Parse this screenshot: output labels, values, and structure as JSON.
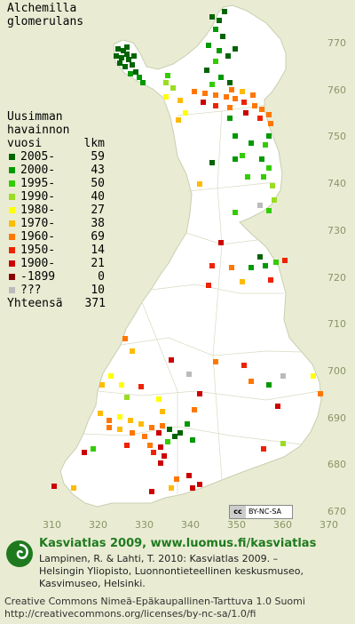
{
  "title": {
    "line1": "Alchemilla",
    "line2": "glomerulans"
  },
  "legend": {
    "heading": [
      "Uusimman",
      "havainnon"
    ],
    "col_year": "vuosi",
    "col_count": "lkm",
    "items": [
      {
        "label": "2005-",
        "count": "59",
        "color": "#006400"
      },
      {
        "label": "2000-",
        "count": "43",
        "color": "#009900"
      },
      {
        "label": "1995-",
        "count": "50",
        "color": "#33cc00"
      },
      {
        "label": "1990-",
        "count": "40",
        "color": "#99dd22"
      },
      {
        "label": "1980-",
        "count": "27",
        "color": "#ffff00"
      },
      {
        "label": "1970-",
        "count": "38",
        "color": "#ffbb00"
      },
      {
        "label": "1960-",
        "count": "69",
        "color": "#ff7700"
      },
      {
        "label": "1950-",
        "count": "14",
        "color": "#ee2200"
      },
      {
        "label": "1900-",
        "count": "21",
        "color": "#cc0000"
      },
      {
        "label": "-1899",
        "count": "0",
        "color": "#880000"
      },
      {
        "label": "???",
        "count": "10",
        "color": "#bbbbbb"
      }
    ],
    "total_label": "Yhteensä",
    "total_count": "371"
  },
  "y_axis": [
    "770",
    "760",
    "750",
    "740",
    "730",
    "720",
    "710",
    "700",
    "690",
    "680",
    "670"
  ],
  "x_axis": [
    "310",
    "320",
    "330",
    "340",
    "350",
    "360",
    "370"
  ],
  "cc_badge": {
    "left": "cc",
    "right": "BY-NC-SA"
  },
  "footer": {
    "headline": "Kasviatlas 2009, www.luomus.fi/kasviatlas",
    "citation": [
      "Lampinen, R. & Lahti, T. 2010: Kasviatlas 2009. –",
      "Helsingin Yliopisto, Luonnontieteellinen keskusmuseo,",
      "Kasvimuseo, Helsinki."
    ],
    "license": [
      "Creative Commons Nimeä-Epäkaupallinen-Tarttuva 1.0 Suomi",
      "http://creativecommons.org/licenses/by-nc-sa/1.0/fi"
    ]
  }
}
